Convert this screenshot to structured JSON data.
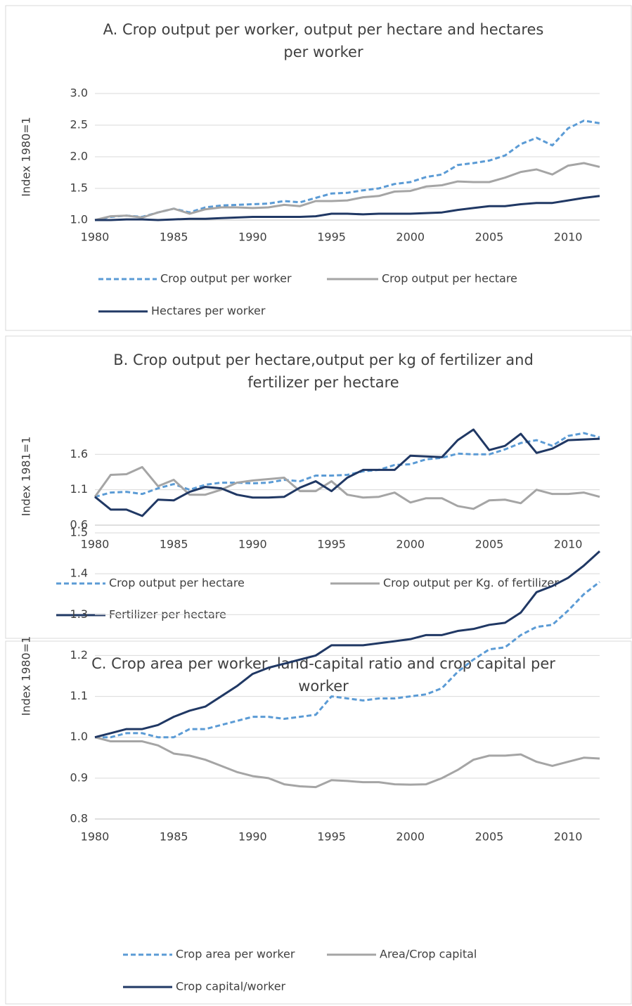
{
  "chart_data": [
    {
      "type": "line",
      "title": "A. Crop output per worker, output per hectare and hectares per worker",
      "y_label": "Index 1980=1",
      "x": [
        1980,
        1981,
        1982,
        1983,
        1984,
        1985,
        1986,
        1987,
        1988,
        1989,
        1990,
        1991,
        1992,
        1993,
        1994,
        1995,
        1996,
        1997,
        1998,
        1999,
        2000,
        2001,
        2002,
        2003,
        2004,
        2005,
        2006,
        2007,
        2008,
        2009,
        2010,
        2011,
        2012
      ],
      "xlim": [
        1980,
        2012
      ],
      "xticks": [
        1980,
        1985,
        1990,
        1995,
        2000,
        2005,
        2010
      ],
      "ylim": [
        1,
        3
      ],
      "yticks": [
        {
          "value": 1,
          "label": "1.0"
        },
        1.5,
        {
          "value": 2,
          "label": "2.0"
        },
        2.5,
        {
          "value": 3,
          "label": "3.0"
        }
      ],
      "grid": true,
      "series": [
        {
          "name": "Crop output per worker",
          "color": "#5b9bd5",
          "style": "dashed",
          "values": [
            1.0,
            1.05,
            1.07,
            1.05,
            1.12,
            1.18,
            1.12,
            1.2,
            1.23,
            1.24,
            1.25,
            1.26,
            1.3,
            1.28,
            1.35,
            1.42,
            1.43,
            1.47,
            1.5,
            1.57,
            1.6,
            1.68,
            1.72,
            1.87,
            1.9,
            1.94,
            2.02,
            2.2,
            2.3,
            2.18,
            2.45,
            2.57,
            2.53
          ]
        },
        {
          "name": "Crop output per hectare",
          "color": "#a5a5a5",
          "style": "solid",
          "values": [
            1.0,
            1.06,
            1.07,
            1.04,
            1.12,
            1.18,
            1.1,
            1.17,
            1.2,
            1.2,
            1.19,
            1.2,
            1.24,
            1.22,
            1.3,
            1.3,
            1.31,
            1.36,
            1.38,
            1.45,
            1.46,
            1.53,
            1.55,
            1.61,
            1.6,
            1.6,
            1.67,
            1.76,
            1.8,
            1.72,
            1.86,
            1.9,
            1.84
          ]
        },
        {
          "name": "Hectares per worker",
          "color": "#203864",
          "style": "solid",
          "values": [
            1.0,
            1.0,
            1.01,
            1.01,
            1.0,
            1.01,
            1.02,
            1.02,
            1.03,
            1.04,
            1.05,
            1.05,
            1.05,
            1.05,
            1.06,
            1.1,
            1.1,
            1.09,
            1.1,
            1.1,
            1.1,
            1.11,
            1.12,
            1.16,
            1.19,
            1.22,
            1.22,
            1.25,
            1.27,
            1.27,
            1.31,
            1.35,
            1.38
          ]
        }
      ]
    },
    {
      "type": "line",
      "title": "B. Crop output per hectare,output per kg of fertilizer and fertilizer per hectare",
      "y_label": "Index 1981=1",
      "x": [
        1980,
        1981,
        1982,
        1983,
        1984,
        1985,
        1986,
        1987,
        1988,
        1989,
        1990,
        1991,
        1992,
        1993,
        1994,
        1995,
        1996,
        1997,
        1998,
        1999,
        2000,
        2001,
        2002,
        2003,
        2004,
        2005,
        2006,
        2007,
        2008,
        2009,
        2010,
        2011,
        2012
      ],
      "xlim": [
        1980,
        2012
      ],
      "xticks": [
        1980,
        1985,
        1990,
        1995,
        2000,
        2005,
        2010
      ],
      "ylim": [
        0.6,
        1.98
      ],
      "yticks": [
        0.6,
        1.1,
        1.6
      ],
      "grid": true,
      "series": [
        {
          "name": "Crop output per hectare",
          "color": "#5b9bd5",
          "style": "dashed",
          "values": [
            1.0,
            1.06,
            1.07,
            1.04,
            1.12,
            1.18,
            1.1,
            1.17,
            1.2,
            1.2,
            1.19,
            1.2,
            1.24,
            1.22,
            1.3,
            1.3,
            1.31,
            1.36,
            1.38,
            1.45,
            1.46,
            1.53,
            1.55,
            1.61,
            1.6,
            1.6,
            1.67,
            1.76,
            1.8,
            1.72,
            1.86,
            1.9,
            1.84
          ]
        },
        {
          "name": "Crop output per Kg. of fertilizer",
          "color": "#a5a5a5",
          "style": "solid",
          "values": [
            1.0,
            1.31,
            1.32,
            1.42,
            1.15,
            1.24,
            1.03,
            1.03,
            1.1,
            1.2,
            1.23,
            1.25,
            1.27,
            1.08,
            1.08,
            1.22,
            1.03,
            0.99,
            1.0,
            1.06,
            0.92,
            0.98,
            0.98,
            0.87,
            0.83,
            0.95,
            0.96,
            0.91,
            1.1,
            1.04,
            1.04,
            1.06,
            1.0
          ]
        },
        {
          "name": "Fertilizer per hectare",
          "color": "#203864",
          "style": "solid",
          "values": [
            1.0,
            0.82,
            0.82,
            0.73,
            0.96,
            0.95,
            1.07,
            1.14,
            1.12,
            1.03,
            0.99,
            0.99,
            1.0,
            1.13,
            1.22,
            1.08,
            1.27,
            1.38,
            1.38,
            1.38,
            1.58,
            1.57,
            1.56,
            1.8,
            1.95,
            1.66,
            1.72,
            1.89,
            1.62,
            1.68,
            1.8,
            1.81,
            1.82
          ]
        }
      ]
    },
    {
      "type": "line",
      "title": "C. Crop area per worker, land-capital ratio and crop capital per worker",
      "y_label": "Index 1980=1",
      "x": [
        1980,
        1981,
        1982,
        1983,
        1984,
        1985,
        1986,
        1987,
        1988,
        1989,
        1990,
        1991,
        1992,
        1993,
        1994,
        1995,
        1996,
        1997,
        1998,
        1999,
        2000,
        2001,
        2002,
        2003,
        2004,
        2005,
        2006,
        2007,
        2008,
        2009,
        2010,
        2011,
        2012
      ],
      "xlim": [
        1980,
        2012
      ],
      "xticks": [
        1980,
        1985,
        1990,
        1995,
        2000,
        2005,
        2010
      ],
      "ylim": [
        0.8,
        1.5
      ],
      "yticks": [
        0.8,
        0.9,
        {
          "value": 1,
          "label": "1.0"
        },
        1.1,
        1.2,
        1.3,
        1.4,
        1.5
      ],
      "grid": true,
      "series": [
        {
          "name": "Crop area per worker",
          "color": "#5b9bd5",
          "style": "dashed",
          "values": [
            1.0,
            1.0,
            1.01,
            1.01,
            1.0,
            1.0,
            1.02,
            1.02,
            1.03,
            1.04,
            1.05,
            1.05,
            1.045,
            1.05,
            1.055,
            1.1,
            1.095,
            1.09,
            1.095,
            1.095,
            1.1,
            1.105,
            1.12,
            1.16,
            1.19,
            1.215,
            1.22,
            1.25,
            1.27,
            1.275,
            1.31,
            1.35,
            1.38
          ]
        },
        {
          "name": "Area/Crop capital",
          "color": "#a5a5a5",
          "style": "solid",
          "values": [
            1.0,
            0.99,
            0.99,
            0.99,
            0.98,
            0.96,
            0.955,
            0.945,
            0.93,
            0.915,
            0.905,
            0.9,
            0.885,
            0.88,
            0.878,
            0.895,
            0.893,
            0.89,
            0.89,
            0.885,
            0.884,
            0.885,
            0.9,
            0.92,
            0.945,
            0.955,
            0.955,
            0.958,
            0.94,
            0.93,
            0.94,
            0.95,
            0.948
          ]
        },
        {
          "name": "Crop capital/worker",
          "color": "#203864",
          "style": "solid",
          "values": [
            1.0,
            1.01,
            1.02,
            1.02,
            1.03,
            1.05,
            1.065,
            1.075,
            1.1,
            1.125,
            1.155,
            1.17,
            1.18,
            1.19,
            1.2,
            1.225,
            1.225,
            1.225,
            1.23,
            1.235,
            1.24,
            1.25,
            1.25,
            1.26,
            1.265,
            1.275,
            1.28,
            1.305,
            1.355,
            1.37,
            1.39,
            1.42,
            1.455
          ]
        }
      ]
    }
  ]
}
